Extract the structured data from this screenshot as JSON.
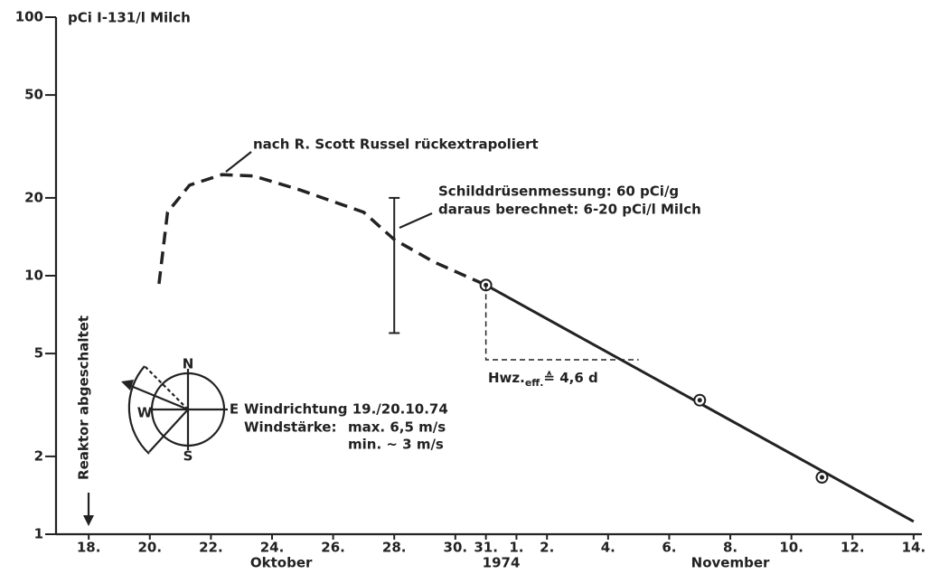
{
  "chart_data": {
    "type": "line",
    "y_label": "pCi I-131/l Milch",
    "log_scale": true,
    "ylim": [
      1,
      100
    ],
    "yticks": [
      1,
      2,
      5,
      10,
      20,
      50,
      100
    ],
    "xlim": [
      -1.07,
      27.27
    ],
    "xticks": [
      {
        "value": 0,
        "label": "18."
      },
      {
        "value": 2,
        "label": "20."
      },
      {
        "value": 4,
        "label": "22."
      },
      {
        "value": 6,
        "label": "24."
      },
      {
        "value": 8,
        "label": "26."
      },
      {
        "value": 10,
        "label": "28."
      },
      {
        "value": 12,
        "label": "30."
      },
      {
        "value": 13,
        "label": "31."
      },
      {
        "value": 14,
        "label": "1."
      },
      {
        "value": 15,
        "label": "2."
      },
      {
        "value": 17,
        "label": "4."
      },
      {
        "value": 19,
        "label": "6."
      },
      {
        "value": 21,
        "label": "8."
      },
      {
        "value": 23,
        "label": "10."
      },
      {
        "value": 25,
        "label": "12."
      },
      {
        "value": 27,
        "label": "14."
      }
    ],
    "x_sublabels": [
      {
        "value": 6.3,
        "label": "Oktober"
      },
      {
        "value": 13.5,
        "label": "1974"
      },
      {
        "value": 21,
        "label": "November"
      }
    ],
    "series": [
      {
        "color": "#222222",
        "style": "dashed",
        "x": [
          2.3,
          2.58,
          3.3,
          4.36,
          5.4,
          6.9,
          9.0,
          10.0,
          11.3,
          13.0
        ],
        "values": [
          9.3,
          17.6,
          22.4,
          24.6,
          24.3,
          21.5,
          17.6,
          13.8,
          11.3,
          9.2
        ]
      },
      {
        "color": "#222222",
        "style": "solid",
        "x": [
          13,
          27
        ],
        "values": [
          9.2,
          1.12
        ]
      },
      {
        "color": "#222222",
        "style": "markers",
        "x": [
          13,
          20,
          24
        ],
        "values": [
          9.2,
          3.3,
          1.66
        ]
      },
      {
        "color": "#222222",
        "style": "thin-dashed",
        "x": [
          13,
          13,
          18
        ],
        "values": [
          9.2,
          4.73,
          4.73
        ]
      }
    ],
    "error_bar": {
      "x": 10,
      "low": 6,
      "high": 20
    },
    "annotations": {
      "curve_note": "nach R. Scott Russel rückextrapoliert",
      "thyroid_1": "Schilddrüsenmessung: 60 pCi/g",
      "thyroid_2": "daraus berechnet: 6-20 pCi/l Milch",
      "halflife": "Hwz.",
      "halflife_sub": "eff.",
      "halflife_val": "≙ 4,6 d",
      "reactor": "Reaktor abgeschaltet",
      "wind_1": "Windrichtung 19./20.10.74",
      "wind_2": "Windstärke:",
      "wind_3": "max.  6,5 m/s",
      "wind_4": "min. ~ 3   m/s"
    }
  },
  "windrose": {
    "n": "N",
    "e": "E",
    "s": "S",
    "w": "W"
  }
}
